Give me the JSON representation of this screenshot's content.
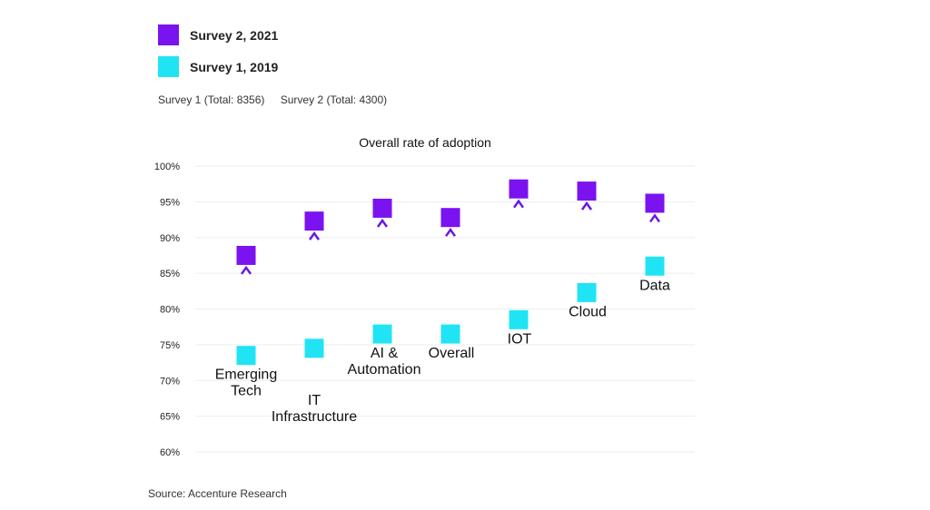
{
  "legend": {
    "items": [
      {
        "label": "Survey 2, 2021",
        "color": "#7b12f0"
      },
      {
        "label": "Survey 1, 2019",
        "color": "#20e4f4"
      }
    ]
  },
  "totals": {
    "survey1": "Survey 1 (Total: 8356)",
    "survey2": "Survey 2 (Total: 4300)"
  },
  "source": "Source: Accenture Research",
  "colors": {
    "survey2": "#7b12f0",
    "survey1": "#20e4f4",
    "arrow_top": "#6a16e8",
    "arrow_bottom": "#8ab4f8"
  },
  "chart_data": {
    "type": "dumbbell",
    "title": "Overall rate of adoption",
    "ylim": [
      60,
      100
    ],
    "yticks": [
      60,
      65,
      70,
      75,
      80,
      85,
      90,
      95,
      100
    ],
    "ytick_labels": [
      "60%",
      "65%",
      "70%",
      "75%",
      "80%",
      "85%",
      "90%",
      "95%",
      "100%"
    ],
    "grid": true,
    "legend_position": "top-left",
    "categories": [
      {
        "label_lines": [
          "Emerging",
          "Tech"
        ],
        "label_position": "below"
      },
      {
        "label_lines": [
          "IT",
          "Infrastructure"
        ],
        "label_position": "below"
      },
      {
        "label_lines": [
          "AI &",
          "Automation"
        ],
        "label_position": "below"
      },
      {
        "label_lines": [
          "Overall"
        ],
        "label_position": "below"
      },
      {
        "label_lines": [
          "IOT"
        ],
        "label_position": "below"
      },
      {
        "label_lines": [
          "Cloud"
        ],
        "label_position": "below"
      },
      {
        "label_lines": [
          "Data"
        ],
        "label_position": "below"
      }
    ],
    "series": [
      {
        "name": "Survey 1, 2019",
        "values": [
          73.5,
          74.5,
          76.5,
          76.5,
          78.5,
          82.3,
          86.0
        ]
      },
      {
        "name": "Survey 2, 2021",
        "values": [
          87.5,
          92.3,
          94.1,
          92.8,
          96.8,
          96.5,
          94.8
        ]
      }
    ]
  }
}
